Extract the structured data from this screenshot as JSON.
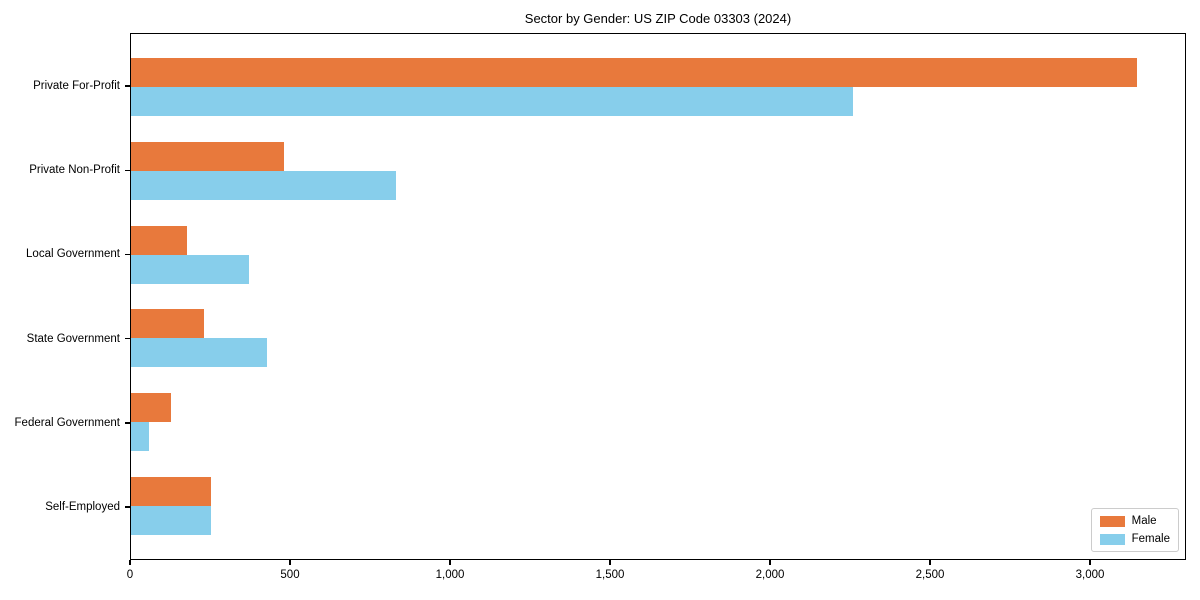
{
  "title": "Sector by Gender: US ZIP Code 03303 (2024)",
  "chart_data": {
    "type": "bar",
    "orientation": "horizontal",
    "title": "Sector by Gender: US ZIP Code 03303 (2024)",
    "xlabel": "",
    "ylabel": "",
    "categories": [
      "Private For-Profit",
      "Private Non-Profit",
      "Local Government",
      "State Government",
      "Federal Government",
      "Self-Employed"
    ],
    "series": [
      {
        "name": "Male",
        "color": "#e8793c",
        "values": [
          3150,
          480,
          175,
          230,
          125,
          250
        ]
      },
      {
        "name": "Female",
        "color": "#87ceeb",
        "values": [
          2260,
          830,
          370,
          425,
          55,
          250
        ]
      }
    ],
    "xlim": [
      0,
      3300
    ],
    "x_ticks": [
      {
        "value": 0,
        "label": "0"
      },
      {
        "value": 500,
        "label": "500"
      },
      {
        "value": 1000,
        "label": "1,000"
      },
      {
        "value": 1500,
        "label": "1,500"
      },
      {
        "value": 2000,
        "label": "2,000"
      },
      {
        "value": 2500,
        "label": "2,500"
      },
      {
        "value": 3000,
        "label": "3,000"
      }
    ],
    "grid": false,
    "legend_position": "lower right",
    "colors": {
      "axis": "#000000",
      "background": "#ffffff",
      "legend_border": "#cccccc"
    }
  }
}
